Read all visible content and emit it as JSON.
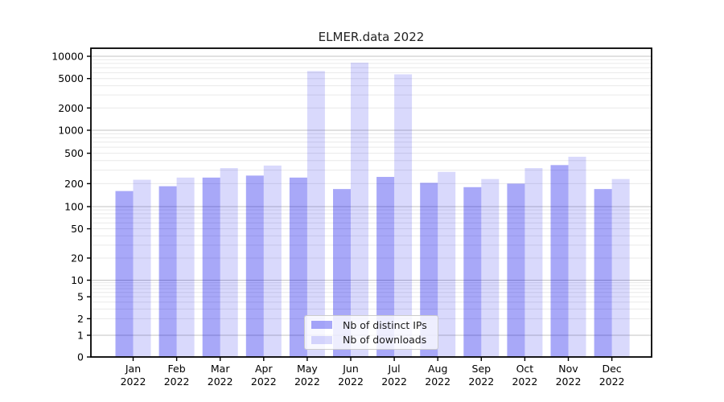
{
  "chart_data": {
    "type": "bar",
    "title": "ELMER.data 2022",
    "categories": [
      "Jan",
      "Feb",
      "Mar",
      "Apr",
      "May",
      "Jun",
      "Jul",
      "Aug",
      "Sep",
      "Oct",
      "Nov",
      "Dec"
    ],
    "category_year": "2022",
    "series": [
      {
        "name": "Nb of distinct IPs",
        "fill": "rgba(0,0,235,0.34)",
        "color_hex": "#a9a9f8",
        "values": [
          160,
          185,
          240,
          255,
          240,
          170,
          245,
          205,
          180,
          200,
          350,
          170
        ]
      },
      {
        "name": "Nb of downloads",
        "fill": "rgba(0,0,235,0.15)",
        "color_hex": "#d9d9fb",
        "values": [
          225,
          240,
          320,
          345,
          6300,
          8200,
          5700,
          285,
          230,
          320,
          450,
          230
        ]
      }
    ],
    "xlabel": "",
    "ylabel": "",
    "y_axis": {
      "scale": "symlog",
      "tick_labels": [
        10000,
        5000,
        2000,
        1000,
        500,
        200,
        100,
        50,
        20,
        10,
        5,
        2,
        1,
        0
      ],
      "ylim": [
        0,
        12000
      ]
    },
    "grid": {
      "major_color": "#c3c3c3",
      "minor_color": "#e9e9e9",
      "on": true
    },
    "legend": {
      "position": "lower-center",
      "border_color": "#cccccc"
    }
  }
}
